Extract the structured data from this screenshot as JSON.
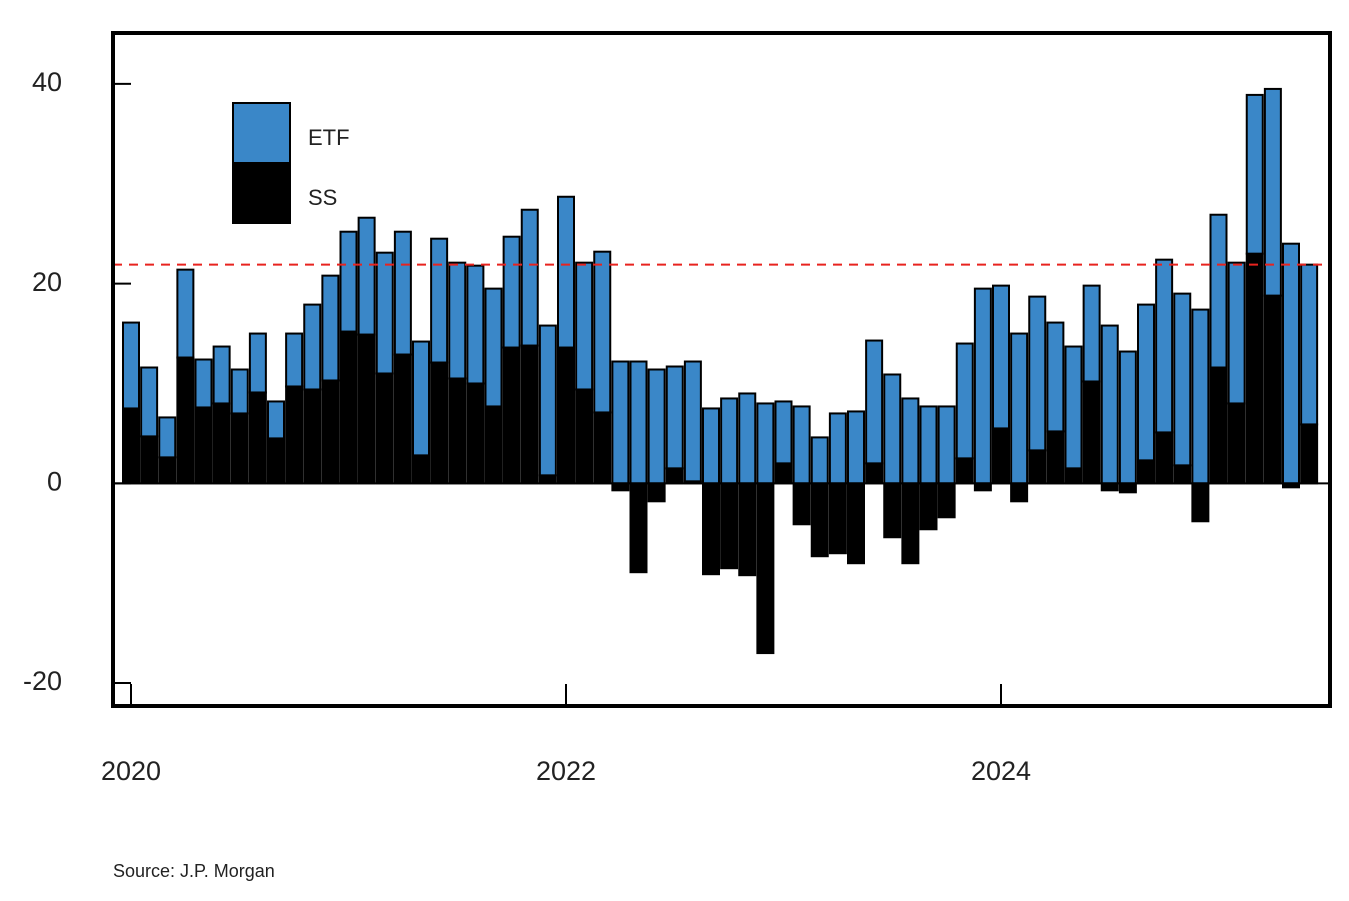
{
  "chart_data": {
    "type": "stacked_bar",
    "categories": [
      "2020",
      null,
      null,
      null,
      null,
      null,
      null,
      null,
      null,
      null,
      null,
      null,
      null,
      null,
      null,
      null,
      null,
      null,
      null,
      null,
      null,
      null,
      null,
      null,
      "2022",
      null,
      null,
      null,
      null,
      null,
      null,
      null,
      null,
      null,
      null,
      null,
      null,
      null,
      null,
      null,
      null,
      null,
      null,
      null,
      null,
      null,
      null,
      null,
      "2024",
      null,
      null,
      null,
      null,
      null,
      null,
      null,
      null,
      null,
      null,
      null,
      null,
      null,
      null,
      null,
      null,
      null
    ],
    "series": [
      {
        "name": "SS",
        "color": "#000000",
        "values": [
          7.5,
          4.7,
          2.6,
          12.6,
          7.6,
          8.0,
          7.0,
          9.1,
          4.5,
          9.7,
          9.4,
          10.3,
          15.2,
          14.9,
          11.0,
          12.9,
          2.8,
          12.1,
          10.5,
          10.0,
          7.7,
          13.6,
          13.8,
          0.8,
          13.6,
          9.4,
          7.1,
          -0.7,
          -8.9,
          -1.8,
          1.5,
          0.2,
          -9.1,
          -8.5,
          -9.2,
          -17.0,
          2.0,
          -4.1,
          -7.3,
          -7.0,
          -8.0,
          2.0,
          -5.4,
          -8.0,
          -4.6,
          -3.4,
          2.5,
          -0.7,
          5.5,
          -1.8,
          3.3,
          5.2,
          1.5,
          10.2,
          -0.7,
          -0.9,
          2.3,
          5.1,
          1.8,
          -3.8,
          11.6,
          8.0,
          23.0,
          18.8,
          -0.4,
          5.9
        ]
      },
      {
        "name": "ETF",
        "color": "#3a87c8",
        "values": [
          8.6,
          6.9,
          4.0,
          8.8,
          4.8,
          5.7,
          4.4,
          5.9,
          3.7,
          5.3,
          8.5,
          10.5,
          10.0,
          11.7,
          12.1,
          12.3,
          11.4,
          12.4,
          11.6,
          11.8,
          11.8,
          11.1,
          13.6,
          15.0,
          15.1,
          12.7,
          16.1,
          12.2,
          12.2,
          11.4,
          10.2,
          12.0,
          7.5,
          8.5,
          9.0,
          8.0,
          6.2,
          7.7,
          4.6,
          7.0,
          7.2,
          12.3,
          10.9,
          8.5,
          7.7,
          7.7,
          11.5,
          19.5,
          14.3,
          15.0,
          15.4,
          10.9,
          12.2,
          9.6,
          15.8,
          13.2,
          15.6,
          17.3,
          17.2,
          17.4,
          15.3,
          14.1,
          15.9,
          20.7,
          24.0,
          16.0
        ]
      }
    ],
    "ylim": [
      -22.3,
      45.1
    ],
    "yticks": [
      -20,
      0,
      20,
      40
    ],
    "reference_line": 21.9,
    "reference_color": "#e8231f",
    "legend": "upper left",
    "source": "Source: J.P. Morgan"
  }
}
